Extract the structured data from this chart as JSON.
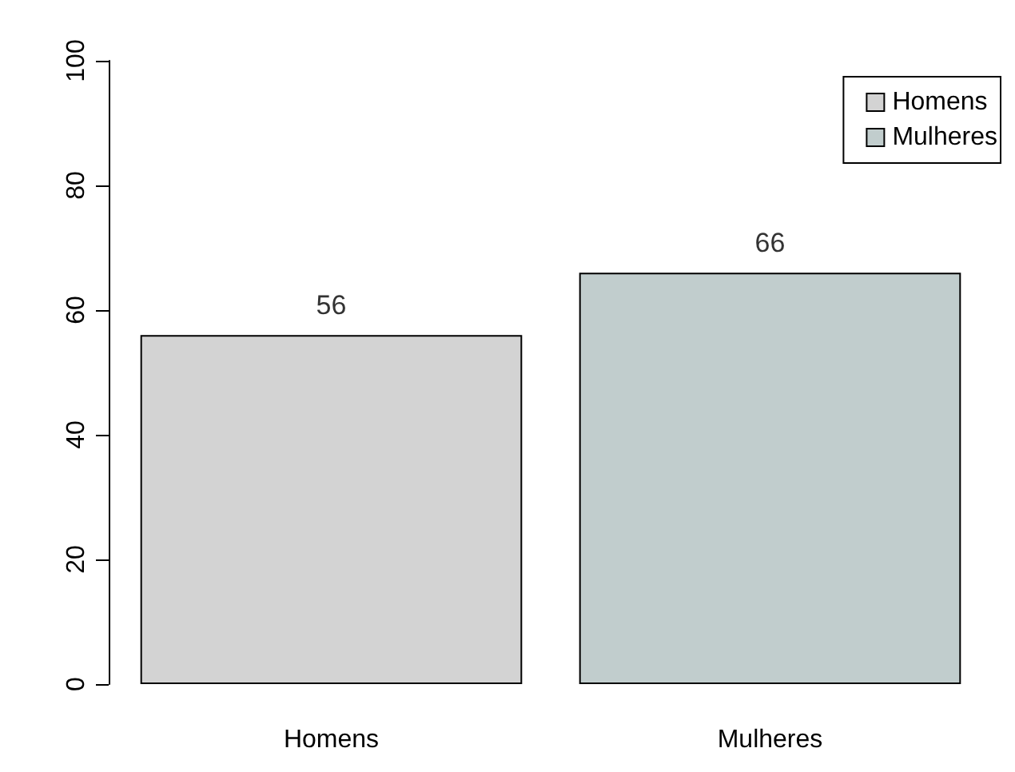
{
  "chart_data": {
    "type": "bar",
    "categories": [
      "Homens",
      "Mulheres"
    ],
    "series": [
      {
        "name": "Homens",
        "color": "#d3d3d3",
        "values": [
          56,
          null
        ]
      },
      {
        "name": "Mulheres",
        "color": "#c1cdcd",
        "values": [
          null,
          66
        ]
      }
    ],
    "ylim": [
      0,
      100
    ],
    "yticks": [
      0,
      20,
      40,
      60,
      80,
      100
    ],
    "data_labels": true,
    "legend": "top right",
    "grid": false
  }
}
